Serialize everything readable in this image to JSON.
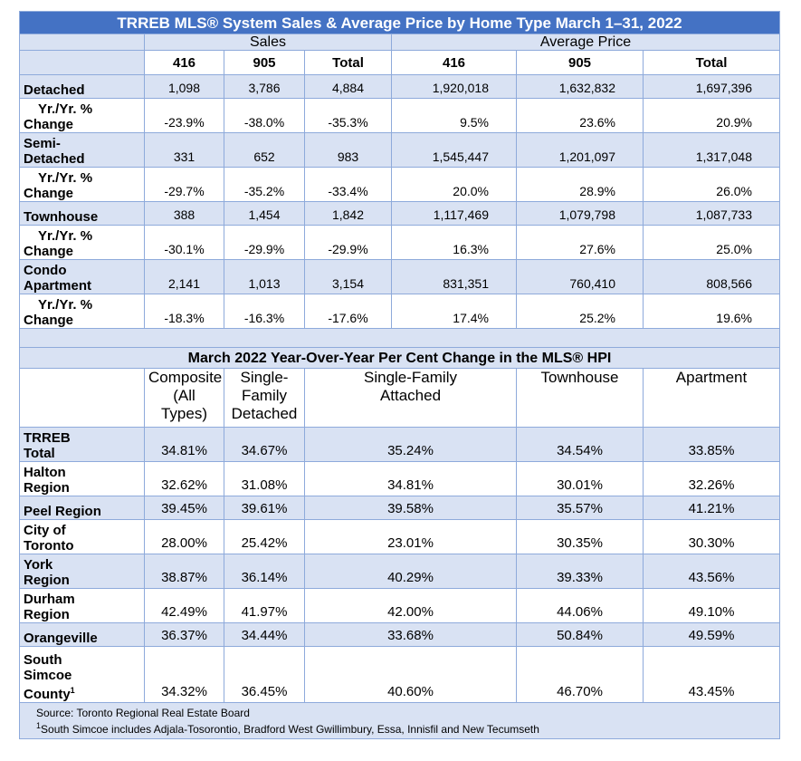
{
  "title": "TRREB MLS® System Sales & Average Price by Home Type March 1–31, 2022",
  "group_headers": {
    "sales": "Sales",
    "avg_price": "Average Price"
  },
  "sub_headers": [
    "416",
    "905",
    "Total",
    "416",
    "905",
    "Total"
  ],
  "yr_label": {
    "line1": "Yr./Yr. %",
    "line2": "Change"
  },
  "sales_rows": [
    {
      "label_lines": [
        "Detached"
      ],
      "values": [
        "1,098",
        "3,786",
        "4,884",
        "1,920,018",
        "1,632,832",
        "1,697,396"
      ],
      "change": [
        "-23.9%",
        "-38.0%",
        "-35.3%",
        "9.5%",
        "23.6%",
        "20.9%"
      ]
    },
    {
      "label_lines": [
        "Semi-",
        "Detached"
      ],
      "values": [
        "331",
        "652",
        "983",
        "1,545,447",
        "1,201,097",
        "1,317,048"
      ],
      "change": [
        "-29.7%",
        "-35.2%",
        "-33.4%",
        "20.0%",
        "28.9%",
        "26.0%"
      ]
    },
    {
      "label_lines": [
        "Townhouse"
      ],
      "values": [
        "388",
        "1,454",
        "1,842",
        "1,117,469",
        "1,079,798",
        "1,087,733"
      ],
      "change": [
        "-30.1%",
        "-29.9%",
        "-29.9%",
        "16.3%",
        "27.6%",
        "25.0%"
      ]
    },
    {
      "label_lines": [
        "Condo",
        "Apartment"
      ],
      "values": [
        "2,141",
        "1,013",
        "3,154",
        "831,351",
        "760,410",
        "808,566"
      ],
      "change": [
        "-18.3%",
        "-16.3%",
        "-17.6%",
        "17.4%",
        "25.2%",
        "19.6%"
      ]
    }
  ],
  "hpi_title": "March 2022 Year-Over-Year Per Cent Change in the MLS® HPI",
  "hpi_headers": [
    [
      "Composite (All",
      "Types)"
    ],
    [
      "Single-",
      "Family",
      "Detached"
    ],
    [
      "Single-Family",
      "Attached"
    ],
    [
      "Townhouse"
    ],
    [
      "Apartment"
    ]
  ],
  "hpi_rows": [
    {
      "label_lines": [
        "TRREB",
        "Total"
      ],
      "values": [
        "34.81%",
        "34.67%",
        "35.24%",
        "34.54%",
        "33.85%"
      ]
    },
    {
      "label_lines": [
        "Halton",
        "Region"
      ],
      "values": [
        "32.62%",
        "31.08%",
        "34.81%",
        "30.01%",
        "32.26%"
      ]
    },
    {
      "label_lines": [
        "Peel Region"
      ],
      "values": [
        "39.45%",
        "39.61%",
        "39.58%",
        "35.57%",
        "41.21%"
      ]
    },
    {
      "label_lines": [
        "City of",
        "Toronto"
      ],
      "values": [
        "28.00%",
        "25.42%",
        "23.01%",
        "30.35%",
        "30.30%"
      ]
    },
    {
      "label_lines": [
        "York",
        "Region"
      ],
      "values": [
        "38.87%",
        "36.14%",
        "40.29%",
        "39.33%",
        "43.56%"
      ]
    },
    {
      "label_lines": [
        "Durham",
        "Region"
      ],
      "values": [
        "42.49%",
        "41.97%",
        "42.00%",
        "44.06%",
        "49.10%"
      ]
    },
    {
      "label_lines": [
        "Orangeville"
      ],
      "values": [
        "36.37%",
        "34.44%",
        "33.68%",
        "50.84%",
        "49.59%"
      ]
    },
    {
      "label_lines": [
        "South",
        "Simcoe",
        "County"
      ],
      "sup": "1",
      "values": [
        "34.32%",
        "36.45%",
        "40.60%",
        "46.70%",
        "43.45%"
      ]
    }
  ],
  "footnotes": {
    "source": "Source: Toronto Regional Real Estate Board",
    "note_marker": "1",
    "note": "South Simcoe includes Adjala-Tosorontio, Bradford West Gwillimbury, Essa, Innisfil and New Tecumseth"
  },
  "colors": {
    "title_bg": "#4472c4",
    "band_bg": "#d9e2f3",
    "border": "#8eaadb"
  }
}
